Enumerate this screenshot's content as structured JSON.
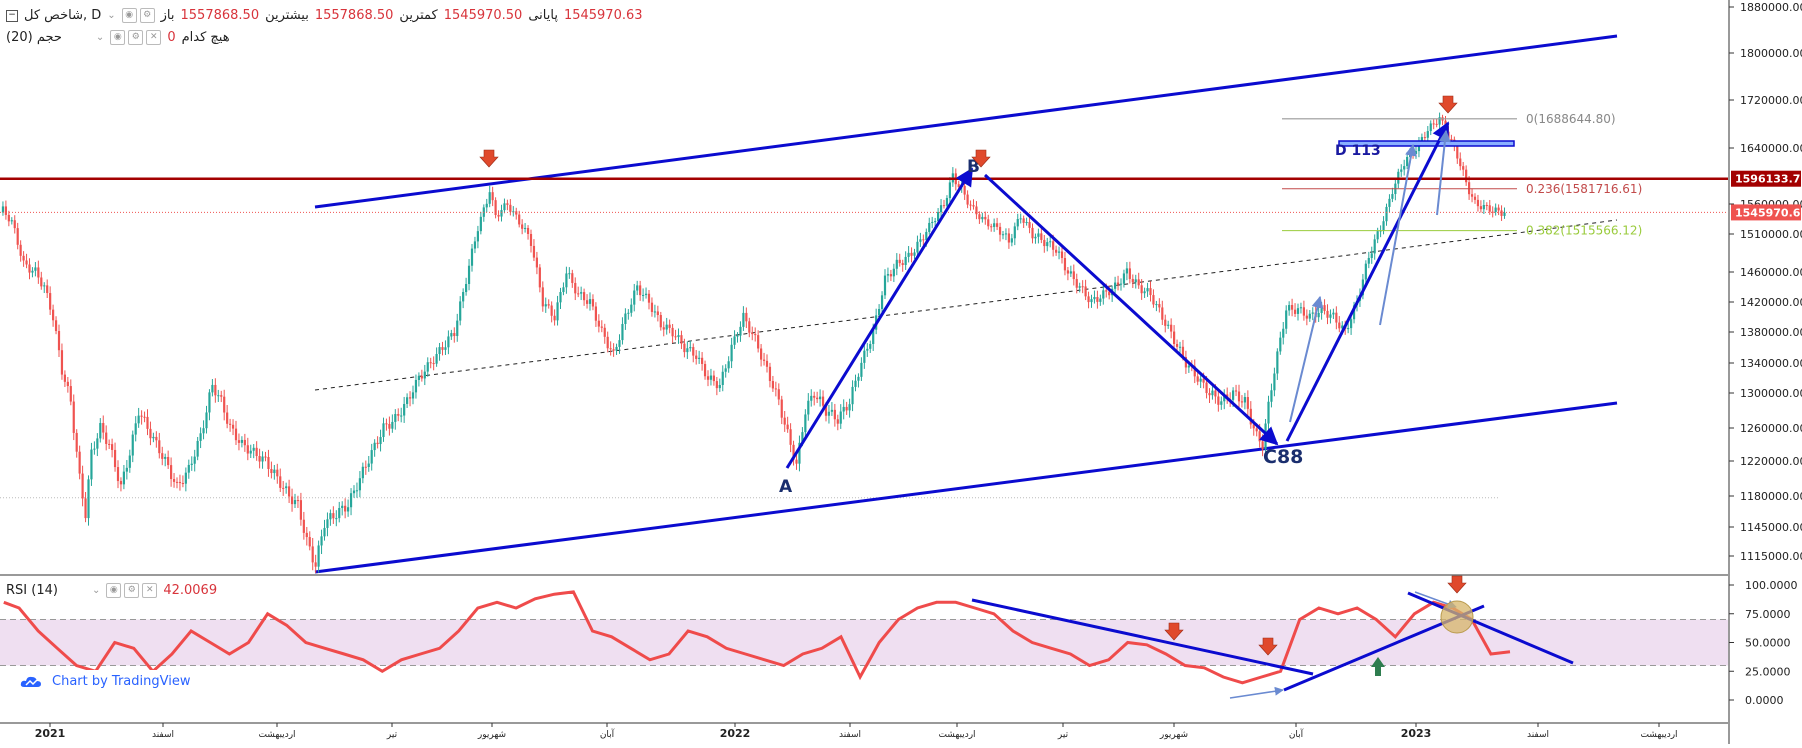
{
  "legend": {
    "symbol": "شاخص کل, D",
    "open_label": "باز",
    "open_value": "1557868.50",
    "high_label": "بیشترین",
    "high_value": "1557868.50",
    "low_label": "کمترین",
    "low_value": "1545970.50",
    "close_label": "پایانی",
    "close_value": "1545970.63",
    "volume_label": "حجم (20)",
    "volume_ma_label": "هیچ کدام",
    "volume_ma_value": "0"
  },
  "rsi_legend": {
    "label": "RSI (14)",
    "value": "42.0069"
  },
  "badge": {
    "text": "Chart by TradingView"
  },
  "colors": {
    "up": "#26a69a",
    "down": "#ef5350",
    "channel": "#0b0bcf",
    "resistance": "#a30000",
    "rsi_line": "#ef4b4b",
    "rsi_band": "#efdff1",
    "fib_line": "#888888"
  },
  "price_axis": {
    "ticks": [
      "1880000.00",
      "1800000.00",
      "1720000.00",
      "1640000.00",
      "1560000.00",
      "1510000.00",
      "1460000.00",
      "1420000.00",
      "1380000.00",
      "1340000.00",
      "1300000.00",
      "1260000.00",
      "1220000.00",
      "1180000.00",
      "1145000.00",
      "1115000.00"
    ],
    "labels": [
      {
        "text": "1596133.77",
        "color": "#a30000"
      },
      {
        "text": "1545970.63",
        "color": "#ef5350"
      }
    ]
  },
  "rsi_axis": {
    "ticks": [
      "100.0000",
      "75.0000",
      "50.0000",
      "25.0000",
      "0.0000"
    ]
  },
  "time_axis": {
    "labels": [
      "2021",
      "اسفند",
      "اردیبهشت",
      "تیر",
      "شهریور",
      "آبان",
      "2022",
      "اسفند",
      "اردیبهشت",
      "تیر",
      "شهریور",
      "آبان",
      "2023",
      "اسفند",
      "اردیبهشت"
    ]
  },
  "fib_labels": [
    "0(1688644.80)",
    "0.236(1581716.61)",
    "0.382(1515566.12)"
  ],
  "pattern_labels": {
    "a": "A",
    "b": "B",
    "c": "C88",
    "d": "D 113"
  },
  "chart_data": {
    "type": "candlestick",
    "frequency": "daily",
    "y_ticks_main": [
      1880000,
      1800000,
      1720000,
      1640000,
      1560000,
      1510000,
      1460000,
      1420000,
      1380000,
      1340000,
      1300000,
      1260000,
      1220000,
      1180000,
      1145000,
      1115000
    ],
    "last_close": 1545970.63,
    "horizontal_levels": [
      1596133.77,
      1545970.63,
      1178000
    ],
    "fib_levels": [
      {
        "ratio": 0,
        "price": 1688644.8
      },
      {
        "ratio": 0.236,
        "price": 1581716.61
      },
      {
        "ratio": 0.382,
        "price": 1515566.12
      }
    ],
    "close_path": [
      [
        1,
        1550000
      ],
      [
        4,
        1530000
      ],
      [
        8,
        1470000
      ],
      [
        12,
        1460000
      ],
      [
        15,
        1440000
      ],
      [
        18,
        1400000
      ],
      [
        21,
        1330000
      ],
      [
        24,
        1290000
      ],
      [
        27,
        1200000
      ],
      [
        29,
        1160000
      ],
      [
        31,
        1230000
      ],
      [
        34,
        1260000
      ],
      [
        37,
        1240000
      ],
      [
        41,
        1190000
      ],
      [
        44,
        1230000
      ],
      [
        47,
        1280000
      ],
      [
        50,
        1260000
      ],
      [
        53,
        1240000
      ],
      [
        56,
        1220000
      ],
      [
        60,
        1190000
      ],
      [
        64,
        1210000
      ],
      [
        68,
        1250000
      ],
      [
        72,
        1310000
      ],
      [
        75,
        1290000
      ],
      [
        78,
        1260000
      ],
      [
        82,
        1240000
      ],
      [
        86,
        1230000
      ],
      [
        90,
        1220000
      ],
      [
        94,
        1200000
      ],
      [
        98,
        1180000
      ],
      [
        101,
        1170000
      ],
      [
        104,
        1130000
      ],
      [
        107,
        1105000
      ],
      [
        110,
        1150000
      ],
      [
        114,
        1160000
      ],
      [
        118,
        1170000
      ],
      [
        122,
        1200000
      ],
      [
        126,
        1230000
      ],
      [
        130,
        1260000
      ],
      [
        134,
        1270000
      ],
      [
        138,
        1290000
      ],
      [
        142,
        1320000
      ],
      [
        146,
        1340000
      ],
      [
        150,
        1360000
      ],
      [
        154,
        1380000
      ],
      [
        158,
        1450000
      ],
      [
        162,
        1520000
      ],
      [
        166,
        1580000
      ],
      [
        168,
        1540000
      ],
      [
        172,
        1560000
      ],
      [
        176,
        1530000
      ],
      [
        180,
        1500000
      ],
      [
        184,
        1420000
      ],
      [
        188,
        1400000
      ],
      [
        192,
        1460000
      ],
      [
        196,
        1430000
      ],
      [
        200,
        1420000
      ],
      [
        204,
        1380000
      ],
      [
        208,
        1350000
      ],
      [
        212,
        1400000
      ],
      [
        216,
        1440000
      ],
      [
        220,
        1420000
      ],
      [
        224,
        1390000
      ],
      [
        228,
        1380000
      ],
      [
        232,
        1360000
      ],
      [
        236,
        1350000
      ],
      [
        240,
        1320000
      ],
      [
        244,
        1310000
      ],
      [
        248,
        1360000
      ],
      [
        252,
        1400000
      ],
      [
        256,
        1370000
      ],
      [
        260,
        1330000
      ],
      [
        264,
        1290000
      ],
      [
        268,
        1240000
      ],
      [
        270,
        1215000
      ],
      [
        273,
        1280000
      ],
      [
        276,
        1300000
      ],
      [
        280,
        1280000
      ],
      [
        284,
        1270000
      ],
      [
        288,
        1290000
      ],
      [
        292,
        1340000
      ],
      [
        296,
        1380000
      ],
      [
        300,
        1450000
      ],
      [
        304,
        1470000
      ],
      [
        308,
        1480000
      ],
      [
        312,
        1500000
      ],
      [
        316,
        1530000
      ],
      [
        320,
        1560000
      ],
      [
        323,
        1600000
      ],
      [
        326,
        1580000
      ],
      [
        330,
        1550000
      ],
      [
        334,
        1530000
      ],
      [
        338,
        1520000
      ],
      [
        342,
        1500000
      ],
      [
        346,
        1540000
      ],
      [
        350,
        1510000
      ],
      [
        354,
        1500000
      ],
      [
        358,
        1490000
      ],
      [
        362,
        1460000
      ],
      [
        366,
        1440000
      ],
      [
        370,
        1420000
      ],
      [
        374,
        1430000
      ],
      [
        378,
        1440000
      ],
      [
        382,
        1460000
      ],
      [
        386,
        1440000
      ],
      [
        390,
        1430000
      ],
      [
        394,
        1400000
      ],
      [
        398,
        1370000
      ],
      [
        402,
        1340000
      ],
      [
        406,
        1320000
      ],
      [
        410,
        1300000
      ],
      [
        414,
        1290000
      ],
      [
        418,
        1300000
      ],
      [
        422,
        1290000
      ],
      [
        426,
        1250000
      ],
      [
        428,
        1240000
      ],
      [
        432,
        1330000
      ],
      [
        436,
        1410000
      ],
      [
        440,
        1410000
      ],
      [
        444,
        1400000
      ],
      [
        448,
        1410000
      ],
      [
        452,
        1400000
      ],
      [
        456,
        1380000
      ],
      [
        460,
        1420000
      ],
      [
        464,
        1480000
      ],
      [
        468,
        1520000
      ],
      [
        472,
        1580000
      ],
      [
        476,
        1620000
      ],
      [
        480,
        1640000
      ],
      [
        484,
        1670000
      ],
      [
        488,
        1690000
      ],
      [
        491,
        1660000
      ],
      [
        494,
        1630000
      ],
      [
        497,
        1590000
      ],
      [
        500,
        1560000
      ],
      [
        503,
        1555000
      ],
      [
        506,
        1550000
      ],
      [
        509,
        1545970
      ]
    ],
    "rsi": {
      "period": 14,
      "last": 42.0069,
      "bands": [
        70,
        30
      ],
      "y_ticks": [
        100,
        75,
        50,
        25,
        0
      ],
      "path": [
        [
          1,
          85
        ],
        [
          5,
          80
        ],
        [
          10,
          60
        ],
        [
          15,
          45
        ],
        [
          20,
          30
        ],
        [
          25,
          25
        ],
        [
          30,
          50
        ],
        [
          35,
          45
        ],
        [
          40,
          25
        ],
        [
          45,
          40
        ],
        [
          50,
          60
        ],
        [
          55,
          50
        ],
        [
          60,
          40
        ],
        [
          65,
          50
        ],
        [
          70,
          75
        ],
        [
          75,
          65
        ],
        [
          80,
          50
        ],
        [
          85,
          45
        ],
        [
          90,
          40
        ],
        [
          95,
          35
        ],
        [
          100,
          25
        ],
        [
          105,
          35
        ],
        [
          110,
          40
        ],
        [
          115,
          45
        ],
        [
          120,
          60
        ],
        [
          125,
          80
        ],
        [
          130,
          85
        ],
        [
          135,
          80
        ],
        [
          140,
          88
        ],
        [
          145,
          92
        ],
        [
          150,
          94
        ],
        [
          155,
          60
        ],
        [
          160,
          55
        ],
        [
          165,
          45
        ],
        [
          170,
          35
        ],
        [
          175,
          40
        ],
        [
          180,
          60
        ],
        [
          185,
          55
        ],
        [
          190,
          45
        ],
        [
          195,
          40
        ],
        [
          200,
          35
        ],
        [
          205,
          30
        ],
        [
          210,
          40
        ],
        [
          215,
          45
        ],
        [
          220,
          55
        ],
        [
          225,
          20
        ],
        [
          230,
          50
        ],
        [
          235,
          70
        ],
        [
          240,
          80
        ],
        [
          245,
          85
        ],
        [
          250,
          85
        ],
        [
          255,
          80
        ],
        [
          260,
          75
        ],
        [
          265,
          60
        ],
        [
          270,
          50
        ],
        [
          275,
          45
        ],
        [
          280,
          40
        ],
        [
          285,
          30
        ],
        [
          290,
          35
        ],
        [
          295,
          50
        ],
        [
          300,
          48
        ],
        [
          305,
          40
        ],
        [
          310,
          30
        ],
        [
          315,
          28
        ],
        [
          320,
          20
        ],
        [
          325,
          15
        ],
        [
          330,
          20
        ],
        [
          335,
          25
        ],
        [
          340,
          70
        ],
        [
          345,
          80
        ],
        [
          350,
          75
        ],
        [
          355,
          80
        ],
        [
          360,
          70
        ],
        [
          365,
          55
        ],
        [
          370,
          75
        ],
        [
          375,
          85
        ],
        [
          380,
          80
        ],
        [
          385,
          70
        ],
        [
          390,
          40
        ],
        [
          395,
          42
        ]
      ]
    }
  }
}
